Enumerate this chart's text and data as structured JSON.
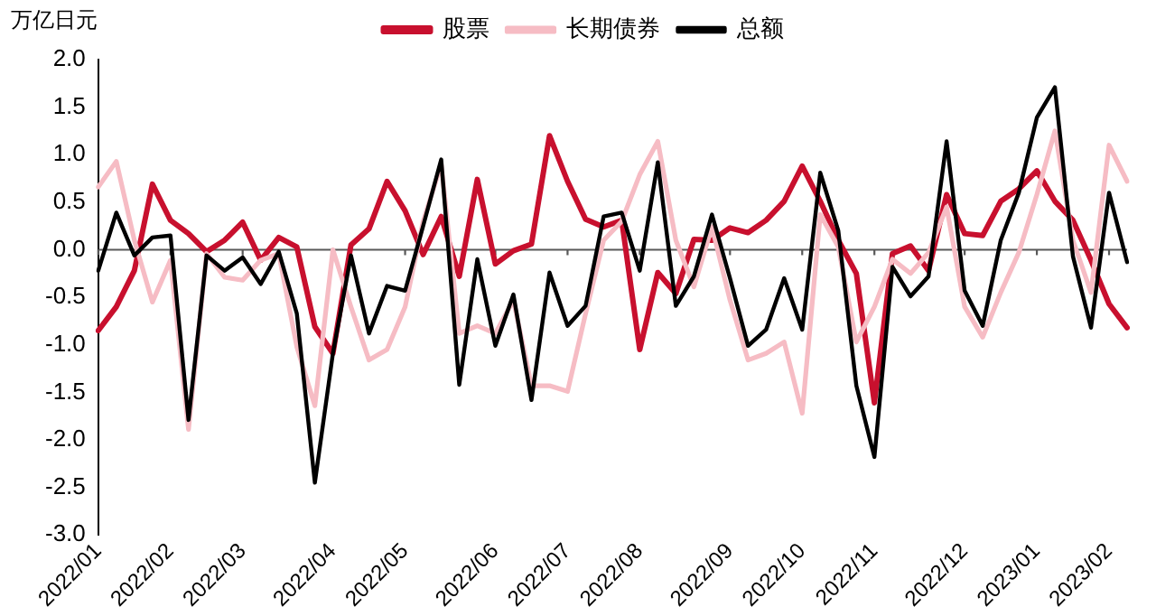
{
  "chart_data": {
    "type": "line",
    "ylabel": "万亿日元",
    "categories": [
      "2022/01",
      null,
      null,
      null,
      "2022/02",
      null,
      null,
      null,
      "2022/03",
      null,
      null,
      null,
      null,
      "2022/04",
      null,
      null,
      null,
      "2022/05",
      null,
      null,
      null,
      null,
      "2022/06",
      null,
      null,
      null,
      "2022/07",
      null,
      null,
      null,
      "2022/08",
      null,
      null,
      null,
      null,
      "2022/09",
      null,
      null,
      null,
      "2022/10",
      null,
      null,
      null,
      "2022/11",
      null,
      null,
      null,
      null,
      "2022/12",
      null,
      null,
      null,
      "2023/01",
      null,
      null,
      null,
      "2023/02",
      null
    ],
    "series": [
      {
        "name": "股票",
        "color": "#c8102e",
        "values": [
          -0.85,
          -0.6,
          -0.22,
          0.69,
          0.31,
          0.17,
          -0.02,
          0.1,
          0.29,
          -0.11,
          0.13,
          0.03,
          -0.81,
          -1.09,
          0.05,
          0.22,
          0.72,
          0.41,
          -0.05,
          0.35,
          -0.28,
          0.74,
          -0.15,
          -0.01,
          0.06,
          1.2,
          0.72,
          0.32,
          0.24,
          0.31,
          -1.05,
          -0.24,
          -0.46,
          0.11,
          0.1,
          0.23,
          0.18,
          0.31,
          0.51,
          0.88,
          0.51,
          0.1,
          -0.25,
          -1.61,
          -0.04,
          0.04,
          -0.22,
          0.58,
          0.17,
          0.15,
          0.51,
          0.64,
          0.83,
          0.51,
          0.31,
          -0.11,
          -0.57,
          -0.82
        ]
      },
      {
        "name": "长期债券",
        "color": "#f6bcc4",
        "values": [
          0.66,
          0.93,
          0.1,
          -0.55,
          -0.11,
          -1.89,
          -0.04,
          -0.29,
          -0.32,
          -0.11,
          -0.04,
          -1.02,
          -1.64,
          0.0,
          -0.6,
          -1.16,
          -1.05,
          -0.6,
          0.3,
          0.9,
          -0.88,
          -0.8,
          -0.88,
          -0.53,
          -1.43,
          -1.43,
          -1.49,
          -0.67,
          0.1,
          0.3,
          0.79,
          1.14,
          0.1,
          -0.39,
          0.24,
          -0.53,
          -1.16,
          -1.09,
          -0.97,
          -1.72,
          0.37,
          0.03,
          -0.97,
          -0.6,
          -0.1,
          -0.25,
          -0.03,
          0.45,
          -0.6,
          -0.92,
          -0.45,
          -0.03,
          0.58,
          1.25,
          0.1,
          -0.45,
          1.1,
          0.72
        ]
      },
      {
        "name": "总额",
        "color": "#000000",
        "values": [
          -0.22,
          0.39,
          -0.06,
          0.13,
          0.15,
          -1.79,
          -0.06,
          -0.22,
          -0.08,
          -0.36,
          -0.02,
          -0.67,
          -2.45,
          -1.09,
          -0.06,
          -0.88,
          -0.38,
          -0.43,
          0.25,
          0.95,
          -1.42,
          -0.1,
          -1.01,
          -0.47,
          -1.58,
          -0.24,
          -0.8,
          -0.59,
          0.35,
          0.39,
          -0.22,
          0.92,
          -0.59,
          -0.28,
          0.37,
          -0.3,
          -1.01,
          -0.84,
          -0.3,
          -0.84,
          0.81,
          0.2,
          -1.43,
          -2.18,
          -0.18,
          -0.49,
          -0.28,
          1.14,
          -0.43,
          -0.8,
          0.1,
          0.6,
          1.39,
          1.71,
          -0.07,
          -0.82,
          0.6,
          -0.13
        ]
      }
    ],
    "ylim": [
      -3.0,
      2.0
    ],
    "yticks": [
      {
        "value": -3,
        "label": "-3.0"
      },
      {
        "value": -2.5,
        "label": "-2.5"
      },
      {
        "value": -2,
        "label": "-2.0"
      },
      {
        "value": -1.5,
        "label": "-1.5"
      },
      {
        "value": -1,
        "label": "-1.0"
      },
      {
        "value": -0.5,
        "label": "-0.5"
      },
      {
        "value": 0,
        "label": "0.0"
      },
      {
        "value": 0.5,
        "label": "0.5"
      },
      {
        "value": 1,
        "label": "1.0"
      },
      {
        "value": 1.5,
        "label": "1.5"
      },
      {
        "value": 2,
        "label": "2.0"
      }
    ],
    "ref_lines": [
      {
        "axis": "y",
        "value": 0,
        "color": "#595959"
      }
    ],
    "grid": false,
    "legend": "top",
    "marker": "none",
    "line_style": "solid"
  }
}
